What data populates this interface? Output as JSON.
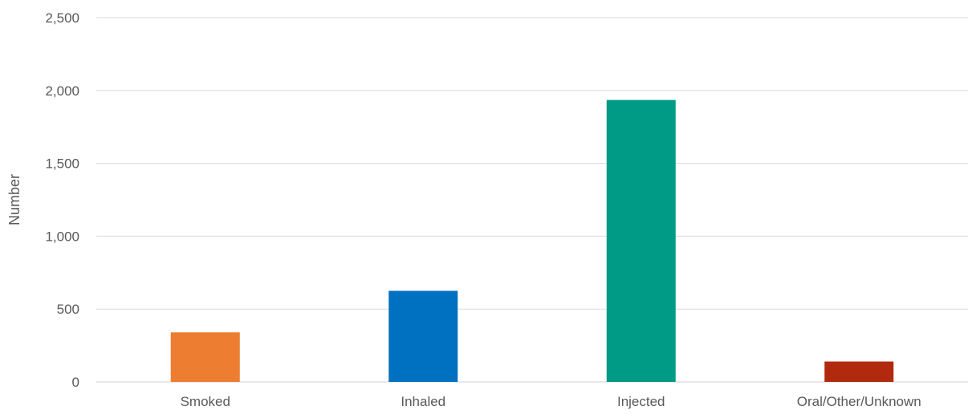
{
  "chart_data": {
    "type": "bar",
    "title": "",
    "xlabel": "",
    "ylabel": "Number",
    "categories": [
      "Smoked",
      "Inhaled",
      "Injected",
      "Oral/Other/Unknown"
    ],
    "values": [
      340,
      625,
      1935,
      140
    ],
    "colors": [
      "#ED7D31",
      "#0070C0",
      "#009B86",
      "#B22A0E"
    ],
    "ylim": [
      0,
      2500
    ],
    "yticks": [
      0,
      500,
      1000,
      1500,
      2000,
      2500
    ],
    "ytick_labels": [
      "0",
      "500",
      "1,000",
      "1,500",
      "2,000",
      "2,500"
    ],
    "grid": true,
    "legend": "none"
  }
}
